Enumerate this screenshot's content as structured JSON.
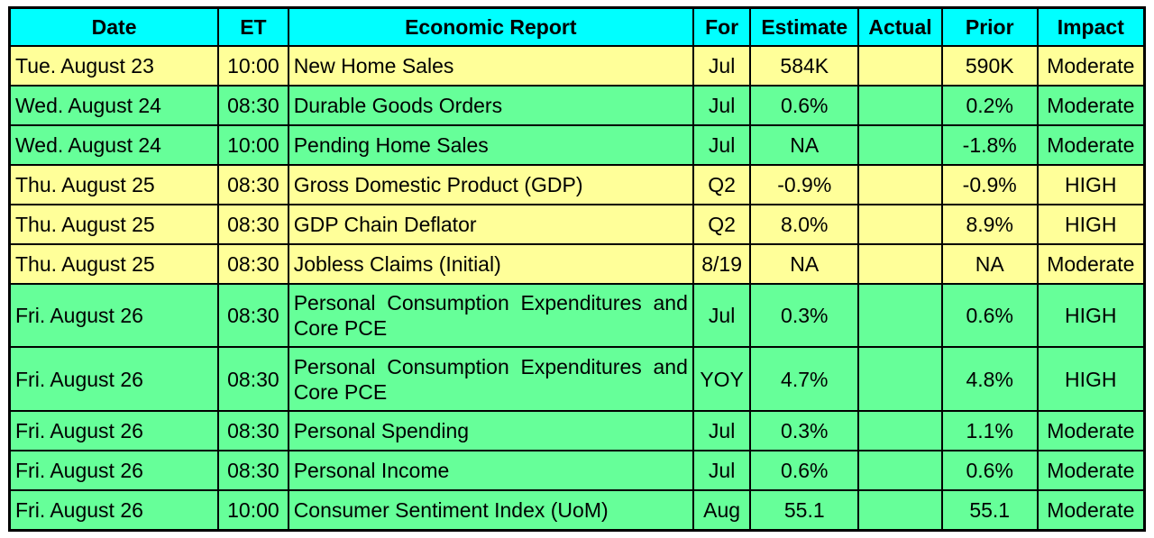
{
  "headers": {
    "date": "Date",
    "et": "ET",
    "report": "Economic Report",
    "for": "For",
    "estimate": "Estimate",
    "actual": "Actual",
    "prior": "Prior",
    "impact": "Impact"
  },
  "rows": [
    {
      "date": "Tue. August 23",
      "et": "10:00",
      "report": "New Home Sales",
      "for": "Jul",
      "estimate": "584K",
      "actual": "",
      "prior": "590K",
      "impact": "Moderate",
      "color": "yellow"
    },
    {
      "date": "Wed. August 24",
      "et": "08:30",
      "report": "Durable Goods Orders",
      "for": "Jul",
      "estimate": "0.6%",
      "actual": "",
      "prior": "0.2%",
      "impact": "Moderate",
      "color": "green"
    },
    {
      "date": "Wed. August 24",
      "et": "10:00",
      "report": "Pending Home Sales",
      "for": "Jul",
      "estimate": "NA",
      "actual": "",
      "prior": "-1.8%",
      "impact": "Moderate",
      "color": "green"
    },
    {
      "date": "Thu. August 25",
      "et": "08:30",
      "report": "Gross Domestic Product (GDP)",
      "for": "Q2",
      "estimate": "-0.9%",
      "actual": "",
      "prior": "-0.9%",
      "impact": "HIGH",
      "color": "yellow"
    },
    {
      "date": "Thu. August 25",
      "et": "08:30",
      "report": "GDP Chain Deflator",
      "for": "Q2",
      "estimate": "8.0%",
      "actual": "",
      "prior": "8.9%",
      "impact": "HIGH",
      "color": "yellow"
    },
    {
      "date": "Thu. August 25",
      "et": "08:30",
      "report": "Jobless Claims (Initial)",
      "for": "8/19",
      "estimate": "NA",
      "actual": "",
      "prior": "NA",
      "impact": "Moderate",
      "color": "yellow"
    },
    {
      "date": "Fri. August 26",
      "et": "08:30",
      "report": "Personal Consumption Expenditures and Core PCE",
      "for": "Jul",
      "estimate": "0.3%",
      "actual": "",
      "prior": "0.6%",
      "impact": "HIGH",
      "color": "green"
    },
    {
      "date": "Fri. August 26",
      "et": "08:30",
      "report": "Personal Consumption Expenditures and Core PCE",
      "for": "YOY",
      "estimate": "4.7%",
      "actual": "",
      "prior": "4.8%",
      "impact": "HIGH",
      "color": "green"
    },
    {
      "date": "Fri. August 26",
      "et": "08:30",
      "report": "Personal Spending",
      "for": "Jul",
      "estimate": "0.3%",
      "actual": "",
      "prior": "1.1%",
      "impact": "Moderate",
      "color": "green"
    },
    {
      "date": "Fri. August 26",
      "et": "08:30",
      "report": "Personal Income",
      "for": "Jul",
      "estimate": "0.6%",
      "actual": "",
      "prior": "0.6%",
      "impact": "Moderate",
      "color": "green"
    },
    {
      "date": "Fri. August 26",
      "et": "10:00",
      "report": "Consumer Sentiment Index (UoM)",
      "for": "Aug",
      "estimate": "55.1",
      "actual": "",
      "prior": "55.1",
      "impact": "Moderate",
      "color": "green"
    }
  ],
  "colors": {
    "header_bg": "#00ffff",
    "yellow_row": "#ffff99",
    "green_row": "#66ff99"
  }
}
